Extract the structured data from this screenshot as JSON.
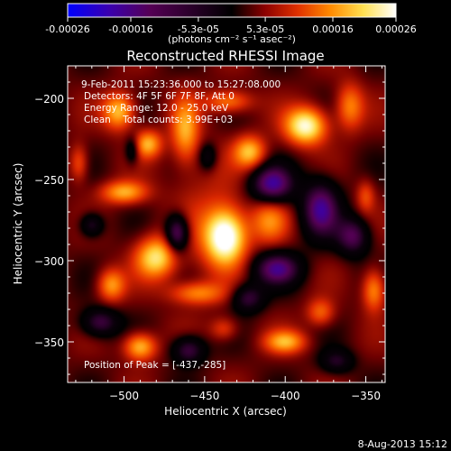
{
  "colorbar": {
    "ticks": [
      "-0.00026",
      "-0.00016",
      "-5.3e-05",
      "5.3e-05",
      "0.00016",
      "0.00026"
    ],
    "tick_values": [
      -0.00026,
      -0.00016,
      -5.3e-05,
      5.3e-05,
      0.00016,
      0.00026
    ],
    "range": [
      -0.00026,
      0.00026
    ],
    "unit_label": "(photons cm⁻² s⁻¹ asec⁻²)",
    "colors": [
      "#0000ff",
      "#3a00b0",
      "#550055",
      "#000000",
      "#8b0000",
      "#e03000",
      "#ff8a00",
      "#ffe050",
      "#ffffff"
    ]
  },
  "title": "Reconstructed RHESSI Image",
  "annotations": {
    "time": "9-Feb-2011 15:23:36.000 to 15:27:08.000",
    "detectors": "Detectors: 4F 5F 6F 7F 8F, Att 0",
    "energy": "Energy Range: 12.0 - 25.0 keV",
    "clean": "Clean    Total counts: 3.99E+03",
    "peak": "Position of Peak = [-437,-285]"
  },
  "footer": "8-Aug-2013 15:12",
  "chart_data": {
    "type": "heatmap",
    "xlabel": "Heliocentric X (arcsec)",
    "ylabel": "Heliocentric Y (arcsec)",
    "xlim": [
      -535,
      -338
    ],
    "ylim": [
      -375,
      -180
    ],
    "xticks": [
      -500,
      -450,
      -400,
      -350
    ],
    "xtick_labels": [
      "−500",
      "−450",
      "−400",
      "−350"
    ],
    "yticks": [
      -200,
      -250,
      -300,
      -350
    ],
    "ytick_labels": [
      "−200",
      "−250",
      "−300",
      "−350"
    ],
    "peak": [
      -437,
      -285
    ],
    "sources": [
      {
        "x": -437,
        "y": -285,
        "sx": 9,
        "sy": 12,
        "a": 1.0
      },
      {
        "x": -387,
        "y": -217,
        "sx": 9,
        "sy": 8,
        "a": 0.85
      },
      {
        "x": -503,
        "y": -208,
        "sx": 7,
        "sy": 8,
        "a": 0.62
      },
      {
        "x": -485,
        "y": -228,
        "sx": 6,
        "sy": 6,
        "a": 0.55
      },
      {
        "x": -462,
        "y": -220,
        "sx": 6,
        "sy": 14,
        "a": 0.5
      },
      {
        "x": -422,
        "y": -233,
        "sx": 7,
        "sy": 7,
        "a": 0.58
      },
      {
        "x": -435,
        "y": -202,
        "sx": 10,
        "sy": 5,
        "a": 0.45
      },
      {
        "x": -500,
        "y": -258,
        "sx": 10,
        "sy": 5,
        "a": 0.55
      },
      {
        "x": -480,
        "y": -298,
        "sx": 9,
        "sy": 9,
        "a": 0.7
      },
      {
        "x": -508,
        "y": -315,
        "sx": 6,
        "sy": 7,
        "a": 0.5
      },
      {
        "x": -455,
        "y": -320,
        "sx": 12,
        "sy": 5,
        "a": 0.45
      },
      {
        "x": -410,
        "y": -275,
        "sx": 8,
        "sy": 10,
        "a": 0.42
      },
      {
        "x": -360,
        "y": -205,
        "sx": 6,
        "sy": 10,
        "a": 0.45
      },
      {
        "x": -345,
        "y": -318,
        "sx": 5,
        "sy": 9,
        "a": 0.5
      },
      {
        "x": -378,
        "y": -332,
        "sx": 6,
        "sy": 6,
        "a": 0.38
      },
      {
        "x": -400,
        "y": -350,
        "sx": 9,
        "sy": 5,
        "a": 0.52
      },
      {
        "x": -490,
        "y": -353,
        "sx": 7,
        "sy": 6,
        "a": 0.62
      },
      {
        "x": -528,
        "y": -240,
        "sx": 4,
        "sy": 8,
        "a": 0.35
      },
      {
        "x": -438,
        "y": -342,
        "sx": 6,
        "sy": 5,
        "a": 0.3
      },
      {
        "x": -350,
        "y": -260,
        "sx": 4,
        "sy": 7,
        "a": 0.3
      },
      {
        "x": -450,
        "y": -270,
        "sx": 15,
        "sy": 30,
        "a": 0.15
      },
      {
        "x": -467,
        "y": -283,
        "sx": 5,
        "sy": 8,
        "a": -0.75
      },
      {
        "x": -408,
        "y": -253,
        "sx": 9,
        "sy": 8,
        "a": -0.8
      },
      {
        "x": -378,
        "y": -268,
        "sx": 8,
        "sy": 12,
        "a": -0.75
      },
      {
        "x": -405,
        "y": -305,
        "sx": 10,
        "sy": 7,
        "a": -0.7
      },
      {
        "x": -358,
        "y": -285,
        "sx": 7,
        "sy": 8,
        "a": -0.6
      },
      {
        "x": -515,
        "y": -338,
        "sx": 8,
        "sy": 6,
        "a": -0.55
      },
      {
        "x": -460,
        "y": -355,
        "sx": 7,
        "sy": 6,
        "a": -0.55
      },
      {
        "x": -520,
        "y": -278,
        "sx": 5,
        "sy": 5,
        "a": -0.45
      },
      {
        "x": -423,
        "y": -323,
        "sx": 7,
        "sy": 6,
        "a": -0.5
      },
      {
        "x": -368,
        "y": -362,
        "sx": 7,
        "sy": 5,
        "a": -0.4
      },
      {
        "x": -495,
        "y": -232,
        "sx": 3,
        "sy": 6,
        "a": -0.35
      },
      {
        "x": -448,
        "y": -236,
        "sx": 4,
        "sy": 6,
        "a": -0.35
      }
    ]
  }
}
